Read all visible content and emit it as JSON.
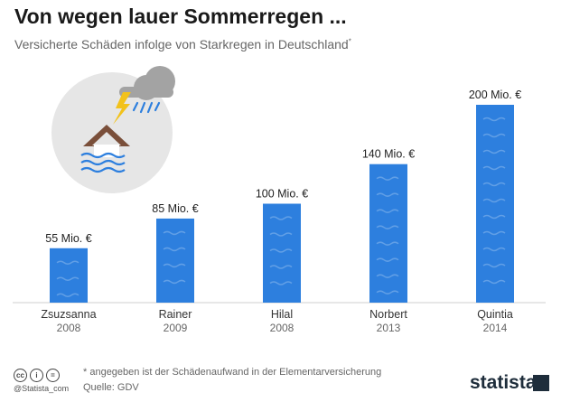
{
  "header": {
    "title": "Von wegen lauer Sommerregen ...",
    "subtitle": "Versicherte Schäden infolge von Starkregen in Deutschland",
    "subtitle_mark": "*"
  },
  "chart_data": {
    "type": "bar",
    "categories": [
      "Zsuzsanna",
      "Rainer",
      "Hilal",
      "Norbert",
      "Quintia"
    ],
    "years": [
      "2008",
      "2009",
      "2008",
      "2013",
      "2014"
    ],
    "values": [
      55,
      85,
      100,
      140,
      200
    ],
    "value_labels": [
      "55 Mio. €",
      "85 Mio. €",
      "100 Mio. €",
      "140 Mio. €",
      "200 Mio. €"
    ],
    "ylim": [
      0,
      200
    ],
    "bar_color": "#2d7fde"
  },
  "footer": {
    "note": "* angegeben ist der Schädenaufwand in der Elementarversicherung",
    "source": "Quelle: GDV",
    "handle": "@Statista_com",
    "logo": "statista"
  }
}
